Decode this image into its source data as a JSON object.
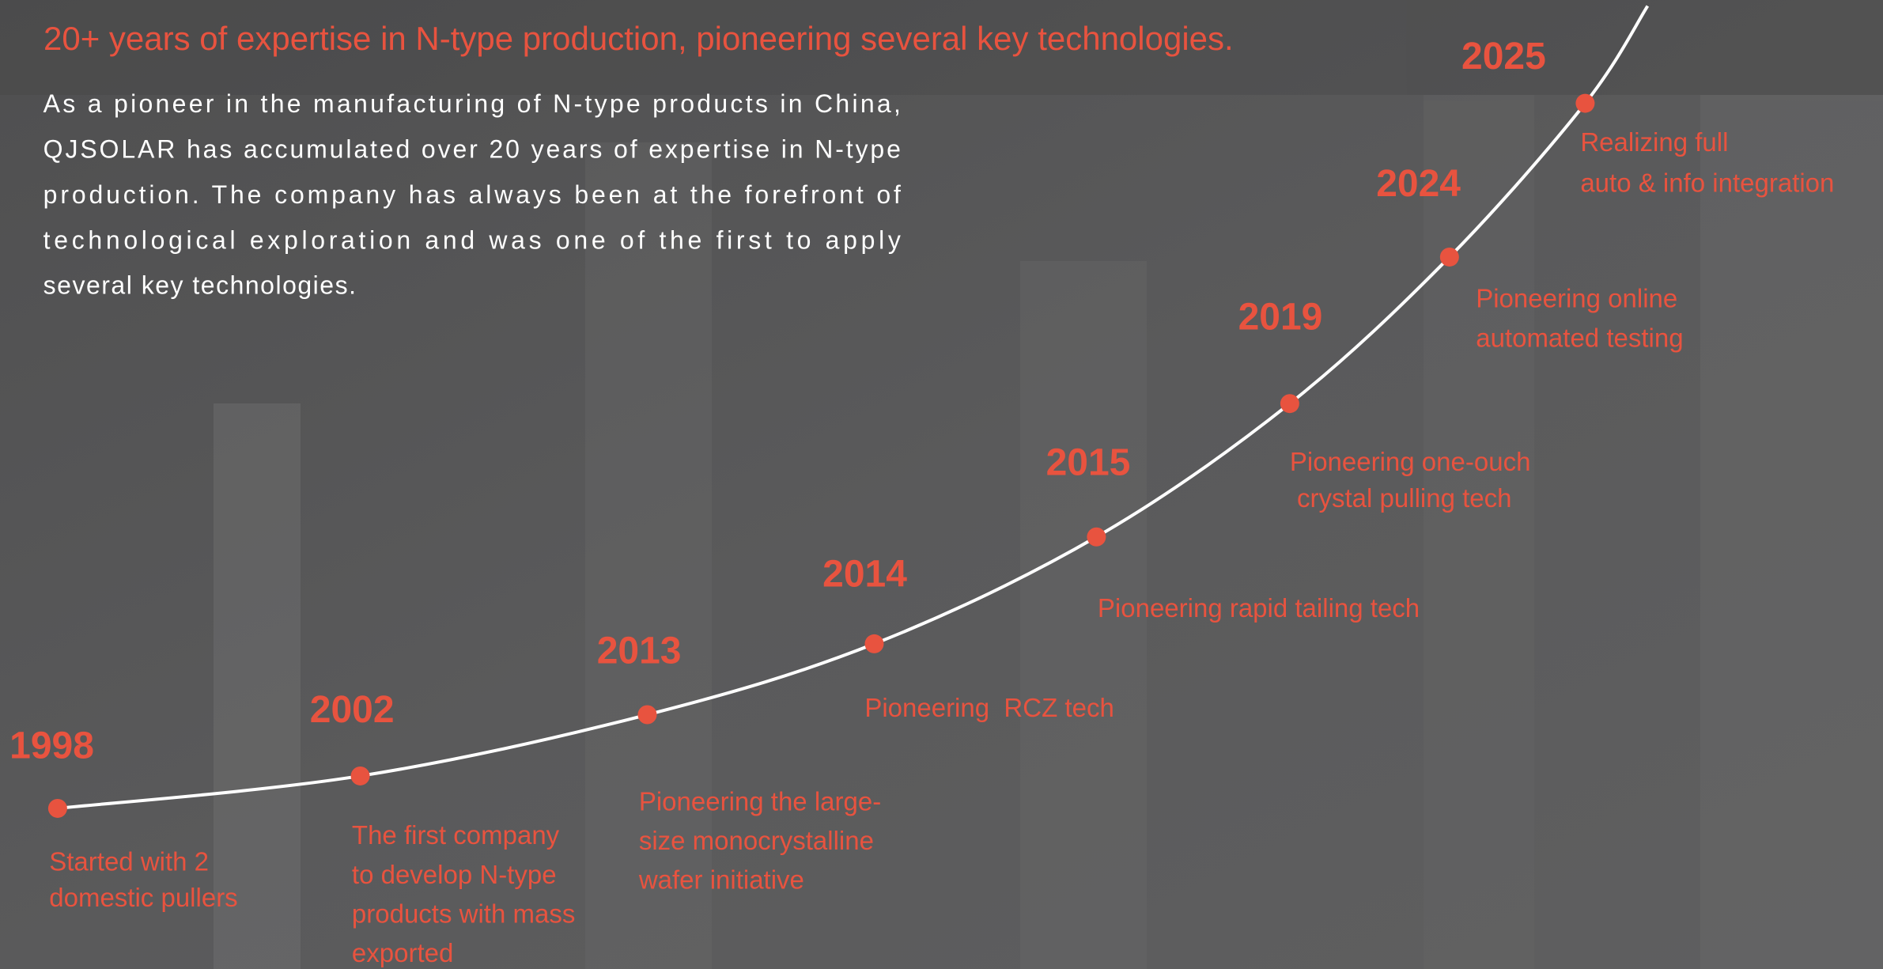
{
  "header": {
    "title": "20+ years of expertise in N-type production, pioneering several key technologies.",
    "description": [
      "As a pioneer in the manufacturing of N-type products in China,",
      "QJSOLAR has accumulated over 20 years of expertise in N-type",
      "production. The company has always been at the forefront of",
      "technological exploration and was one of the first to apply",
      "several key technologies."
    ]
  },
  "milestones": [
    {
      "year": "1998",
      "text": [
        "Started with 2",
        "domestic pullers"
      ]
    },
    {
      "year": "2002",
      "text": [
        "The first company",
        "to develop N-type",
        "products with mass",
        "exported"
      ]
    },
    {
      "year": "2013",
      "text": [
        "Pioneering the large-",
        "size monocrystalline",
        "wafer initiative"
      ]
    },
    {
      "year": "2014",
      "text": [
        "Pioneering  RCZ tech"
      ]
    },
    {
      "year": "2015",
      "text": [
        "Pioneering rapid tailing tech"
      ]
    },
    {
      "year": "2019",
      "text": [
        "Pioneering one-ouch",
        " crystal pulling tech"
      ]
    },
    {
      "year": "2024",
      "text": [
        "Pioneering online",
        "automated testing"
      ]
    },
    {
      "year": "2025",
      "text": [
        "Realizing full",
        "auto & info integration"
      ]
    }
  ]
}
